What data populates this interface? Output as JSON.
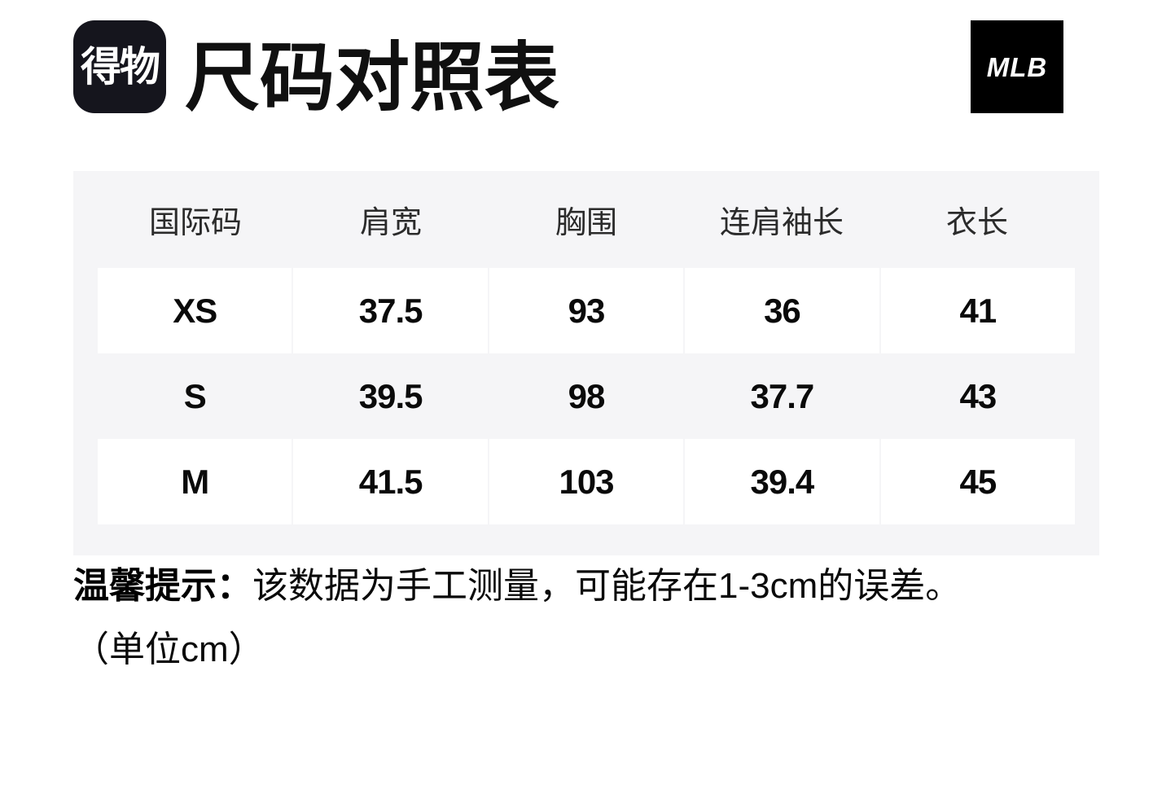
{
  "header": {
    "app_logo_text": "得物",
    "title": "尺码对照表",
    "brand_logo_text": "MLB"
  },
  "table": {
    "columns": [
      "国际码",
      "肩宽",
      "胸围",
      "连肩袖长",
      "衣长"
    ],
    "rows": [
      {
        "size": "XS",
        "values": [
          "37.5",
          "93",
          "36",
          "41"
        ]
      },
      {
        "size": "S",
        "values": [
          "39.5",
          "98",
          "37.7",
          "43"
        ]
      },
      {
        "size": "M",
        "values": [
          "41.5",
          "103",
          "39.4",
          "45"
        ]
      }
    ]
  },
  "note": {
    "label": "温馨提示：",
    "text": "该数据为手工测量，可能存在1-3cm的误差。",
    "unit_line": "（单位cm）"
  },
  "colors": {
    "page_bg": "#ffffff",
    "table_bg": "#f5f5f7",
    "row_cell_bg": "#ffffff",
    "dewu_logo_bg": "#15151d",
    "mlb_logo_bg": "#000000",
    "text": "#0a0a0a"
  }
}
